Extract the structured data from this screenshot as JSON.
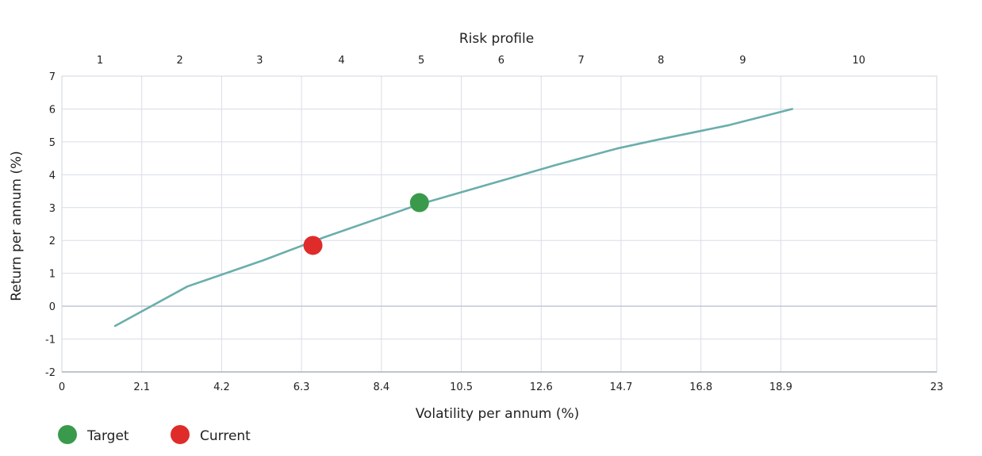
{
  "chart_data": {
    "type": "line",
    "top_axis": {
      "title": "Risk profile",
      "ticks": [
        {
          "label": "1",
          "x": 1.0
        },
        {
          "label": "2",
          "x": 3.1
        },
        {
          "label": "3",
          "x": 5.2
        },
        {
          "label": "4",
          "x": 7.35
        },
        {
          "label": "5",
          "x": 9.45
        },
        {
          "label": "6",
          "x": 11.55
        },
        {
          "label": "7",
          "x": 13.65
        },
        {
          "label": "8",
          "x": 15.75
        },
        {
          "label": "9",
          "x": 17.9
        },
        {
          "label": "10",
          "x": 20.95
        }
      ]
    },
    "x_axis": {
      "title": "Volatility per annum (%)",
      "ticks": [
        "0",
        "2.1",
        "4.2",
        "6.3",
        "8.4",
        "10.5",
        "12.6",
        "14.7",
        "16.8",
        "18.9",
        "23"
      ],
      "tick_values": [
        0,
        2.1,
        4.2,
        6.3,
        8.4,
        10.5,
        12.6,
        14.7,
        16.8,
        18.9,
        23
      ],
      "range": [
        0,
        23
      ]
    },
    "y_axis": {
      "title": "Return per annum (%)",
      "ticks": [
        "-2",
        "-1",
        "0",
        "1",
        "2",
        "3",
        "4",
        "5",
        "6",
        "7"
      ],
      "tick_values": [
        -2,
        -1,
        0,
        1,
        2,
        3,
        4,
        5,
        6,
        7
      ],
      "range": [
        -2,
        7
      ]
    },
    "grid": true,
    "series": [
      {
        "color": "#6aaeac",
        "points": [
          [
            1.4,
            -0.6
          ],
          [
            3.3,
            0.6
          ],
          [
            5.3,
            1.4
          ],
          [
            6.9,
            2.1
          ],
          [
            8.4,
            2.7
          ],
          [
            9.4,
            3.1
          ],
          [
            11.2,
            3.7
          ],
          [
            13.0,
            4.3
          ],
          [
            14.6,
            4.8
          ],
          [
            15.6,
            5.05
          ],
          [
            17.5,
            5.5
          ],
          [
            19.2,
            6.0
          ]
        ]
      }
    ],
    "markers": [
      {
        "name": "Target",
        "x": 9.4,
        "y": 3.15,
        "color": "#3a9a4b"
      },
      {
        "name": "Current",
        "x": 6.6,
        "y": 1.85,
        "color": "#e02b2b"
      }
    ],
    "legend": {
      "placement": "bottom-left",
      "items": [
        {
          "label": "Target",
          "color": "#3a9a4b"
        },
        {
          "label": "Current",
          "color": "#e02b2b"
        }
      ]
    }
  }
}
